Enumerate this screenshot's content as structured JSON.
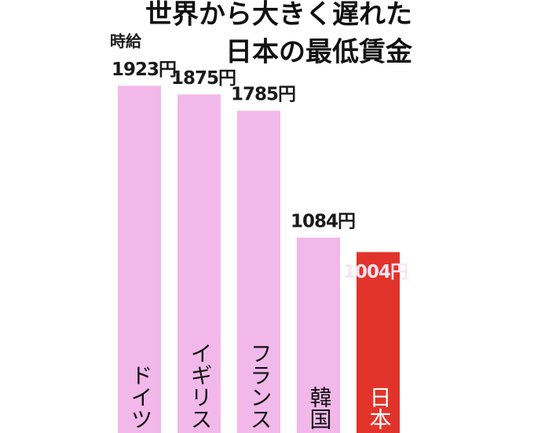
{
  "chart_data": {
    "type": "bar",
    "title": [
      "世界から大きく遅れた",
      "日本の最低賃金"
    ],
    "annotation": "時給",
    "categories": [
      "ドイツ",
      "イギリス",
      "フランス",
      "韓国",
      "日本"
    ],
    "values": [
      1923,
      1875,
      1785,
      1084,
      1004
    ],
    "value_labels": [
      "1923円",
      "1875円",
      "1785円",
      "1084円",
      "1004円"
    ],
    "colors": [
      "#f2b8ea",
      "#f2b8ea",
      "#f2b8ea",
      "#f2b8ea",
      "#e2332b"
    ],
    "label_colors": [
      "#1a1a1a",
      "#1a1a1a",
      "#1a1a1a",
      "#1a1a1a",
      "#fde3f3"
    ],
    "label_position": [
      "above",
      "above",
      "above",
      "above",
      "inside"
    ]
  }
}
